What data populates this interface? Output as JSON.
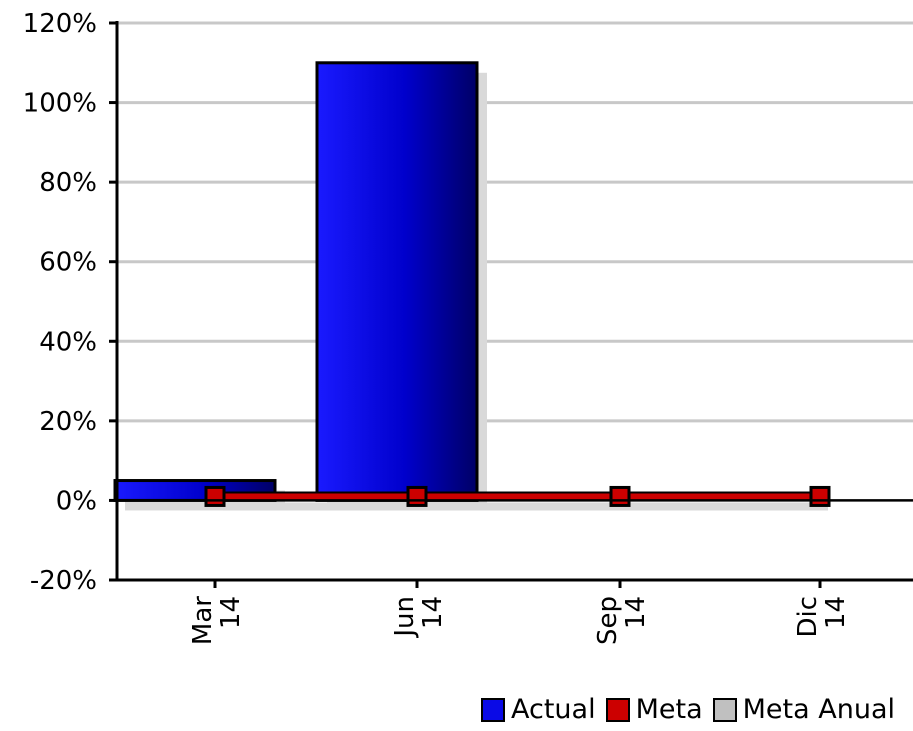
{
  "chart_data": {
    "type": "bar",
    "categories": [
      "Mar\n14",
      "Jun\n14",
      "Sep\n14",
      "Dic\n14"
    ],
    "series": [
      {
        "name": "Actual",
        "type": "bar",
        "values": [
          5,
          110,
          null,
          null
        ],
        "color": "#0a0ae6"
      },
      {
        "name": "Meta",
        "type": "line",
        "values": [
          1,
          1,
          1,
          1
        ],
        "color": "#cc0000"
      },
      {
        "name": "Meta Anual",
        "type": "line",
        "values": [
          null,
          null,
          null,
          null
        ],
        "color": "#c0c0c0"
      }
    ],
    "ylim": [
      -20,
      120
    ],
    "yticks": [
      "-20%",
      "0%",
      "20%",
      "40%",
      "60%",
      "80%",
      "100%",
      "120%"
    ],
    "ytick_values": [
      -20,
      0,
      20,
      40,
      60,
      80,
      100,
      120
    ],
    "grid": true,
    "legend_position": "bottom-right"
  }
}
